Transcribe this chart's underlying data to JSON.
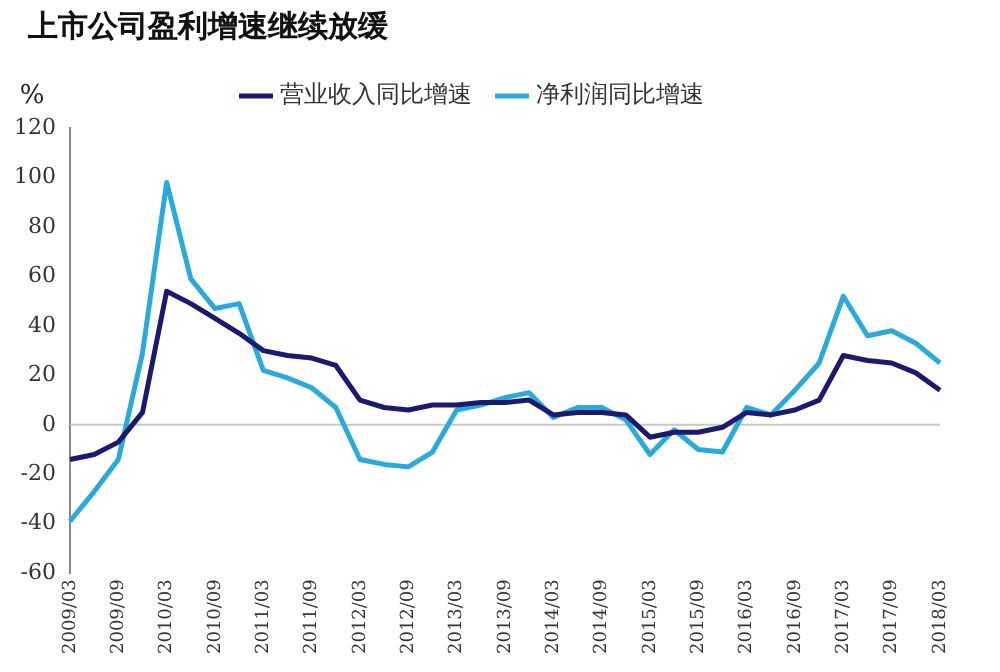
{
  "chart_data": {
    "type": "line",
    "title": "上市公司盈利增速继续放缓",
    "ylabel": "%",
    "categories": [
      "2009/03",
      null,
      "2009/09",
      null,
      "2010/03",
      null,
      "2010/09",
      null,
      "2011/03",
      null,
      "2011/09",
      null,
      "2012/03",
      null,
      "2012/09",
      null,
      "2013/03",
      null,
      "2013/09",
      null,
      "2014/03",
      null,
      "2014/09",
      null,
      "2015/03",
      null,
      "2015/09",
      null,
      "2016/03",
      null,
      "2016/09",
      null,
      "2017/03",
      null,
      "2017/09",
      null,
      "2018/03"
    ],
    "series": [
      {
        "name": "营业收入同比增速",
        "color": "#1c1a6e",
        "values": [
          -14,
          -12,
          -7,
          5,
          54,
          49,
          43,
          37,
          30,
          28,
          27,
          24,
          10,
          7,
          6,
          8,
          8,
          9,
          9,
          10,
          4,
          5,
          5,
          4,
          -5,
          -3,
          -3,
          -1,
          5,
          4,
          6,
          10,
          28,
          26,
          25,
          21,
          14
        ]
      },
      {
        "name": "净利润同比增速",
        "color": "#2aa9db",
        "values": [
          -39,
          -27,
          -14,
          29,
          98,
          59,
          47,
          49,
          22,
          19,
          15,
          7,
          -14,
          -16,
          -17,
          -11,
          6,
          8,
          11,
          13,
          3,
          7,
          7,
          2,
          -12,
          -2,
          -10,
          -11,
          7,
          4,
          14,
          25,
          52,
          36,
          38,
          33,
          25
        ]
      }
    ],
    "ylim": [
      -60,
      120
    ],
    "yticks": [
      -60,
      -40,
      -20,
      0,
      20,
      40,
      60,
      80,
      100,
      120
    ],
    "ref_lines": [
      {
        "axis": "y",
        "value": 0,
        "color": "#c8c8c8"
      }
    ],
    "grid": false,
    "legend": "top",
    "marker": "none",
    "line_style": "solid"
  }
}
